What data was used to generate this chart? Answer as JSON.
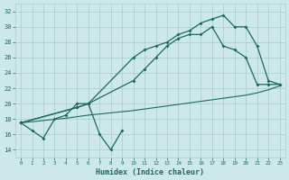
{
  "xlabel": "Humidex (Indice chaleur)",
  "bg_color": "#cce8e8",
  "grid_color": "#aacccc",
  "line_color": "#1a6b5a",
  "ylim": [
    13,
    33
  ],
  "xlim": [
    -0.5,
    23.5
  ],
  "yticks": [
    14,
    16,
    18,
    20,
    22,
    24,
    26,
    28,
    30,
    32
  ],
  "xticks": [
    0,
    1,
    2,
    3,
    4,
    5,
    6,
    7,
    8,
    9,
    10,
    11,
    12,
    13,
    14,
    15,
    16,
    17,
    18,
    19,
    20,
    21,
    22,
    23
  ],
  "line_wiggly_x": [
    0,
    1,
    2,
    3,
    4,
    5,
    6,
    7,
    8,
    9
  ],
  "line_wiggly_y": [
    17.5,
    16.5,
    15.5,
    18.0,
    18.5,
    20.0,
    20.0,
    16.0,
    14.0,
    16.5
  ],
  "line_high_x": [
    0,
    5,
    6,
    10,
    11,
    12,
    13,
    14,
    15,
    16,
    17,
    18,
    19,
    20,
    21,
    22,
    23
  ],
  "line_high_y": [
    17.5,
    19.5,
    20.0,
    26.0,
    27.0,
    27.5,
    28.0,
    29.0,
    29.5,
    30.5,
    31.0,
    31.5,
    30.0,
    30.0,
    27.5,
    23.0,
    22.5
  ],
  "line_mid_x": [
    0,
    5,
    6,
    10,
    11,
    12,
    13,
    14,
    15,
    16,
    17,
    18,
    19,
    20,
    21,
    22,
    23
  ],
  "line_mid_y": [
    17.5,
    19.5,
    20.0,
    23.0,
    24.5,
    26.0,
    27.5,
    28.5,
    29.0,
    29.0,
    30.0,
    27.5,
    27.0,
    26.0,
    22.5,
    22.5,
    22.5
  ],
  "line_flat_x": [
    0,
    1,
    2,
    3,
    4,
    5,
    6,
    7,
    8,
    9,
    10,
    11,
    12,
    13,
    14,
    15,
    16,
    17,
    18,
    19,
    20,
    21,
    22,
    23
  ],
  "line_flat_y": [
    17.5,
    17.65,
    17.8,
    17.95,
    18.1,
    18.3,
    18.5,
    18.65,
    18.8,
    18.95,
    19.1,
    19.3,
    19.5,
    19.7,
    19.9,
    20.1,
    20.3,
    20.5,
    20.7,
    20.9,
    21.1,
    21.4,
    21.8,
    22.3
  ]
}
